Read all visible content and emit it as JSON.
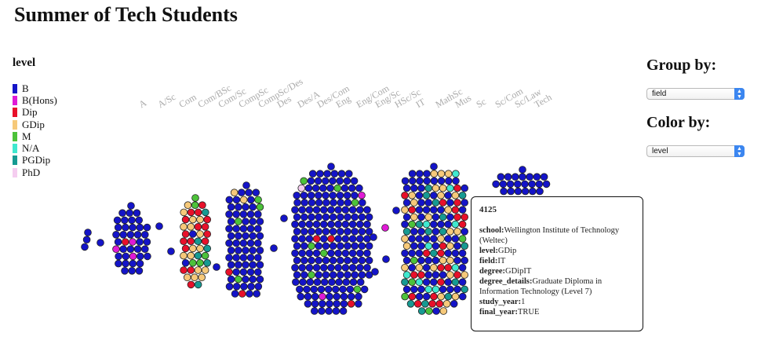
{
  "page": {
    "title": "Summer of Tech Students"
  },
  "legend": {
    "title": "level",
    "items": [
      {
        "label": "B",
        "color": "#1414c8"
      },
      {
        "label": "B(Hons)",
        "color": "#e01ad6"
      },
      {
        "label": "Dip",
        "color": "#e8102a"
      },
      {
        "label": "GDip",
        "color": "#f6c97a"
      },
      {
        "label": "M",
        "color": "#4cc23a"
      },
      {
        "label": "N/A",
        "color": "#3fe8cf"
      },
      {
        "label": "PGDip",
        "color": "#169a92"
      },
      {
        "label": "PhD",
        "color": "#f5cdf0"
      }
    ]
  },
  "controls": {
    "group_by": {
      "label": "Group by:",
      "value": "field"
    },
    "color_by": {
      "label": "Color by:",
      "value": "level"
    }
  },
  "categories": [
    "A",
    "A/Sc",
    "Com",
    "Com/BSc",
    "Com/Sc",
    "CompSc",
    "CompSc/Des",
    "Des",
    "Des/A",
    "Des/Com",
    "Eng",
    "Eng/Com",
    "Eng/Sc",
    "HSc/Sc",
    "IT",
    "MathSc",
    "Mus",
    "Sc",
    "Sc/Com",
    "Sc/Law",
    "Tech"
  ],
  "tooltip": {
    "id": "4125",
    "rows": [
      {
        "key": "school:",
        "value": "Wellington Institute of Technology (Weltec)"
      },
      {
        "key": "level:",
        "value": "GDip"
      },
      {
        "key": "field:",
        "value": "IT"
      },
      {
        "key": "degree:",
        "value": "GDipIT"
      },
      {
        "key": "degree_details:",
        "value": "Graduate Diploma in Information Technology (Level 7)"
      },
      {
        "key": "study_year:",
        "value": "1"
      },
      {
        "key": "final_year:",
        "value": "TRUE"
      }
    ]
  }
}
